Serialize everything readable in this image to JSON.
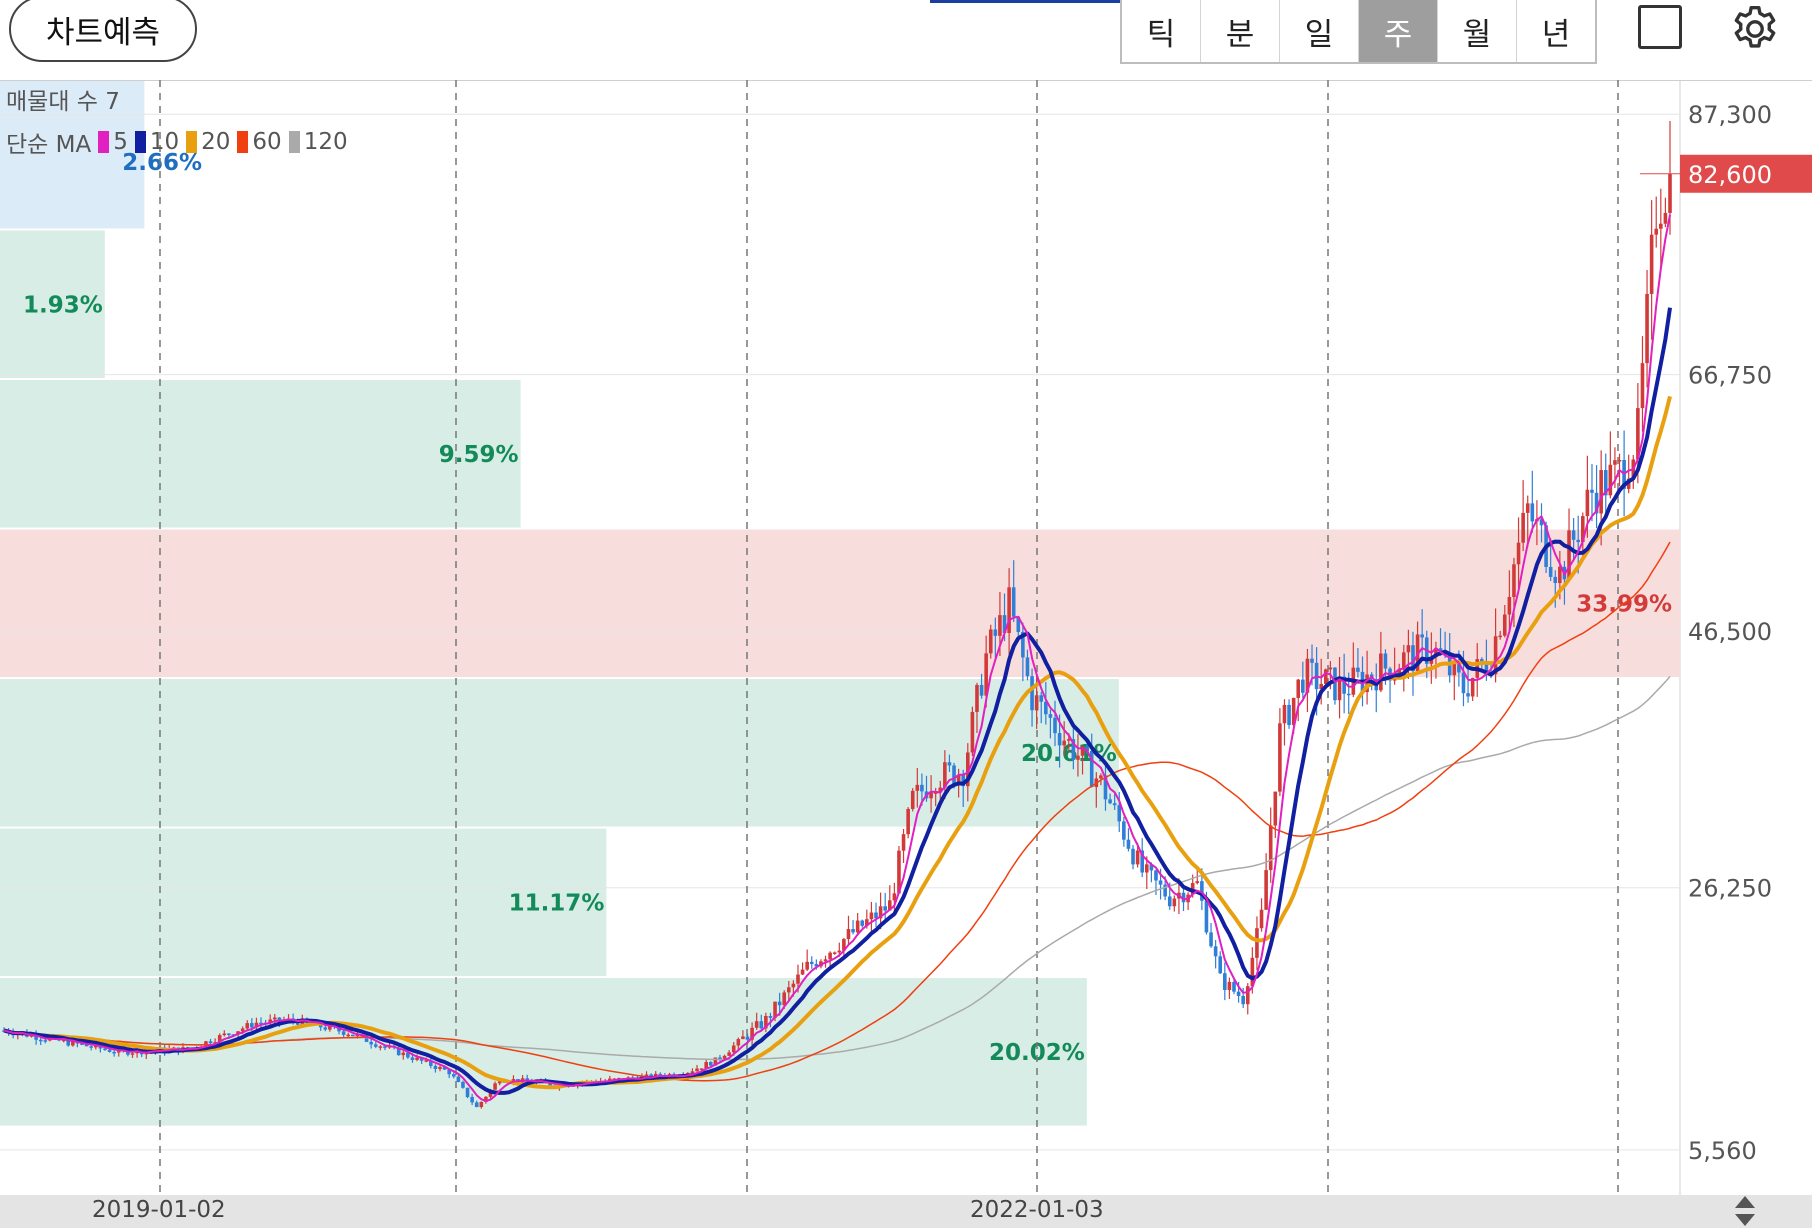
{
  "header": {
    "predict_button": "차트예측",
    "tabs": [
      "틱",
      "분",
      "일",
      "주",
      "월",
      "년"
    ],
    "active_tab": "주",
    "icons": [
      "fullscreen-square-icon",
      "gear-icon"
    ]
  },
  "legend": {
    "volume_profile_label": "매물대 수 7",
    "ma_label": "단순 MA",
    "ma_periods": [
      {
        "label": "5",
        "color": "#e020c0"
      },
      {
        "label": "10",
        "color": "#1020a0"
      },
      {
        "label": "20",
        "color": "#e8a010"
      },
      {
        "label": "60",
        "color": "#f04010"
      },
      {
        "label": "120",
        "color": "#aaaaaa"
      }
    ]
  },
  "chart_data": {
    "type": "candlestick",
    "y_axis": {
      "ticks": [
        "87,300",
        "66,750",
        "46,500",
        "26,250",
        "5,560"
      ],
      "range": [
        2000,
        90000
      ],
      "current_price_label": "82,600",
      "current_price": 82600
    },
    "x_axis": {
      "ticks": [
        "2019-01-02",
        "2022-01-03"
      ]
    },
    "volume_profile": [
      {
        "low": 78200,
        "high": 90000,
        "percent": "2.66%",
        "percent_value": 2.66,
        "highlight": "blue"
      },
      {
        "low": 66400,
        "high": 78200,
        "percent": "1.93%",
        "percent_value": 1.93,
        "highlight": "green"
      },
      {
        "low": 54600,
        "high": 66400,
        "percent": "9.59%",
        "percent_value": 9.59,
        "highlight": "green"
      },
      {
        "low": 42800,
        "high": 54600,
        "percent": "33.99%",
        "percent_value": 33.99,
        "highlight": "red"
      },
      {
        "low": 31000,
        "high": 42800,
        "percent": "20.61%",
        "percent_value": 20.61,
        "highlight": "green"
      },
      {
        "low": 19200,
        "high": 31000,
        "percent": "11.17%",
        "percent_value": 11.17,
        "highlight": "green"
      },
      {
        "low": 7400,
        "high": 19200,
        "percent": "20.02%",
        "percent_value": 20.02,
        "highlight": "green"
      }
    ],
    "price_path_weekly_approx": [
      [
        0,
        15000
      ],
      [
        10,
        14300
      ],
      [
        25,
        13300
      ],
      [
        40,
        13500
      ],
      [
        55,
        15600
      ],
      [
        63,
        15800
      ],
      [
        75,
        14800
      ],
      [
        85,
        13400
      ],
      [
        97,
        11700
      ],
      [
        103,
        8900
      ],
      [
        108,
        11200
      ],
      [
        120,
        10700
      ],
      [
        140,
        11300
      ],
      [
        148,
        11600
      ],
      [
        155,
        12600
      ],
      [
        166,
        15800
      ],
      [
        175,
        20000
      ],
      [
        186,
        23000
      ],
      [
        193,
        24900
      ],
      [
        198,
        33200
      ],
      [
        203,
        35000
      ],
      [
        209,
        35500
      ],
      [
        214,
        44500
      ],
      [
        219,
        48500
      ],
      [
        224,
        41300
      ],
      [
        233,
        37200
      ],
      [
        239,
        34500
      ],
      [
        248,
        27500
      ],
      [
        254,
        25500
      ],
      [
        260,
        26500
      ],
      [
        265,
        19000
      ],
      [
        270,
        17500
      ],
      [
        274,
        24000
      ],
      [
        278,
        38500
      ],
      [
        283,
        43000
      ],
      [
        292,
        42000
      ],
      [
        300,
        43500
      ],
      [
        311,
        45200
      ],
      [
        318,
        42000
      ],
      [
        324,
        44600
      ],
      [
        332,
        56000
      ],
      [
        339,
        51000
      ],
      [
        346,
        57500
      ],
      [
        352,
        59000
      ],
      [
        356,
        62000
      ],
      [
        360,
        80000
      ],
      [
        363,
        82600
      ]
    ],
    "ma_end_values": {
      "5": 79000,
      "10": 73000,
      "20": 63700,
      "60": 52800,
      "120": 42600
    }
  }
}
